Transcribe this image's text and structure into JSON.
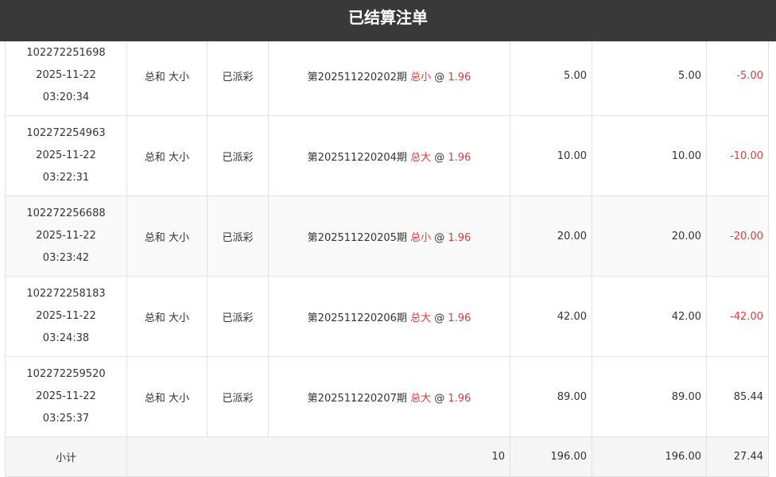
{
  "title": "已结算注单",
  "colors": {
    "header_bg": "#393939",
    "accent_red": "#e4393c"
  },
  "rows": [
    {
      "id": "102272251698",
      "date": "2025-11-22",
      "time": "03:20:34",
      "play": "总和 大小",
      "status": "已派彩",
      "issue": "第202511220202期",
      "pick": "总小",
      "at": "@",
      "odds": "1.96",
      "amount": "5.00",
      "valid": "5.00",
      "result": "-5.00",
      "negative": true
    },
    {
      "id": "102272254963",
      "date": "2025-11-22",
      "time": "03:22:31",
      "play": "总和 大小",
      "status": "已派彩",
      "issue": "第202511220204期",
      "pick": "总大",
      "at": "@",
      "odds": "1.96",
      "amount": "10.00",
      "valid": "10.00",
      "result": "-10.00",
      "negative": true
    },
    {
      "id": "102272256688",
      "date": "2025-11-22",
      "time": "03:23:42",
      "play": "总和 大小",
      "status": "已派彩",
      "issue": "第202511220205期",
      "pick": "总小",
      "at": "@",
      "odds": "1.96",
      "amount": "20.00",
      "valid": "20.00",
      "result": "-20.00",
      "negative": true
    },
    {
      "id": "102272258183",
      "date": "2025-11-22",
      "time": "03:24:38",
      "play": "总和 大小",
      "status": "已派彩",
      "issue": "第202511220206期",
      "pick": "总大",
      "at": "@",
      "odds": "1.96",
      "amount": "42.00",
      "valid": "42.00",
      "result": "-42.00",
      "negative": true
    },
    {
      "id": "102272259520",
      "date": "2025-11-22",
      "time": "03:25:37",
      "play": "总和 大小",
      "status": "已派彩",
      "issue": "第202511220207期",
      "pick": "总大",
      "at": "@",
      "odds": "1.96",
      "amount": "89.00",
      "valid": "89.00",
      "result": "85.44",
      "negative": false
    }
  ],
  "subtotal": {
    "label": "小计",
    "count": "10",
    "amount": "196.00",
    "valid": "196.00",
    "result": "27.44"
  }
}
